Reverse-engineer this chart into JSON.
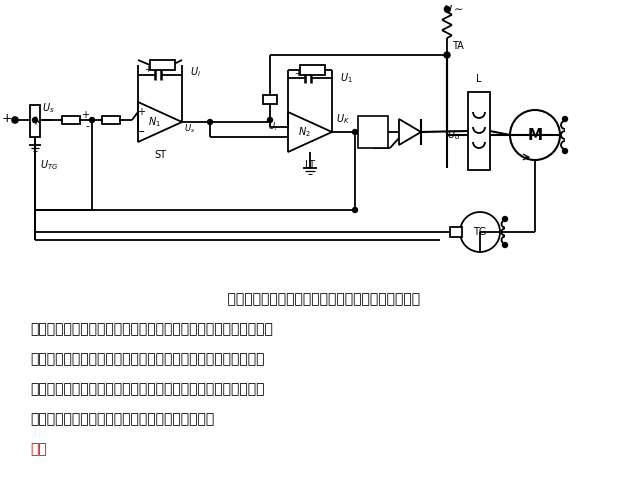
{
  "bg": "#ffffff",
  "lc": "#000000",
  "red": "#cc0000",
  "fw": 6.31,
  "fh": 4.9,
  "dpi": 100,
  "lines": [
    "    所示为速度与电流双闭环调速系统框图。单闭环调速",
    "系统快速性不好，在速度反馈调节器后，再加人电流反馈调节器，",
    "分别调节转速和电流，而将转速调节器的输出和电流反馈信号综",
    "合后作为电流调节器的输入，再用电流调节器的输出作为晶体管",
    "触发装置的控制电压，这样就形成了双闭环调速系",
    "统。"
  ],
  "last_black_line": "触发装置的控制电压，这样就形成了双闭环调速系",
  "last_red": "统。"
}
